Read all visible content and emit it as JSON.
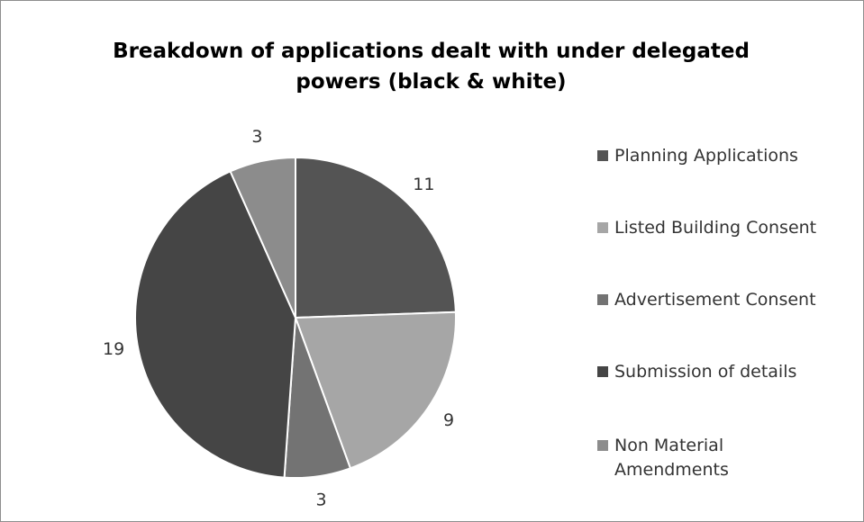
{
  "chart_data": {
    "type": "pie",
    "title": "Breakdown of applications  dealt with under delegated powers (black & white)",
    "title_lines": [
      "Breakdown of applications  dealt with under delegated",
      "powers (black & white)"
    ],
    "categories": [
      "Planning Applications",
      "Listed Building Consent",
      "Advertisement Consent",
      "Submission of details",
      "Non Material Amendments"
    ],
    "values": [
      11,
      9,
      3,
      19,
      3
    ],
    "colors": [
      "#545454",
      "#a6a6a6",
      "#737373",
      "#454545",
      "#8c8c8c"
    ],
    "start_angle": "12 o'clock, clockwise",
    "legend_position": "right",
    "data_labels": "outside"
  }
}
